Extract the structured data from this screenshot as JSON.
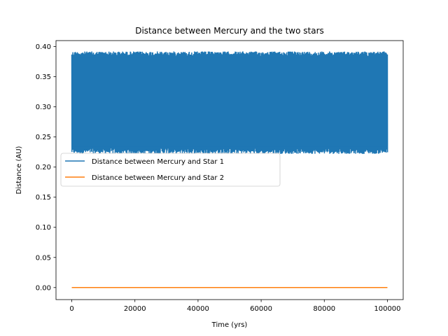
{
  "chart_data": {
    "type": "line",
    "title": "Distance between Mercury and the two stars",
    "xlabel": "Time (yrs)",
    "ylabel": "Distance (AU)",
    "xlim": [
      -5000,
      105000
    ],
    "ylim": [
      -0.02,
      0.41
    ],
    "xticks": [
      0,
      20000,
      40000,
      60000,
      80000,
      100000
    ],
    "xtick_labels": [
      "0",
      "20000",
      "40000",
      "60000",
      "80000",
      "100000"
    ],
    "yticks": [
      0.0,
      0.05,
      0.1,
      0.15,
      0.2,
      0.25,
      0.3,
      0.35,
      0.4
    ],
    "ytick_labels": [
      "0.00",
      "0.05",
      "0.10",
      "0.15",
      "0.20",
      "0.25",
      "0.30",
      "0.35",
      "0.40"
    ],
    "grid": false,
    "legend_position": "center-left",
    "series": [
      {
        "name": "Distance between Mercury and Star 1",
        "color": "#1f77b4",
        "style": "dense-oscillation",
        "x_range": [
          0,
          100000
        ],
        "min_envelope": 0.222,
        "max_envelope": 0.392,
        "mean": 0.305
      },
      {
        "name": "Distance between Mercury and Star 2",
        "color": "#ff7f0e",
        "style": "line",
        "x": [
          0,
          100000
        ],
        "y": [
          0.0,
          0.0
        ]
      }
    ]
  }
}
